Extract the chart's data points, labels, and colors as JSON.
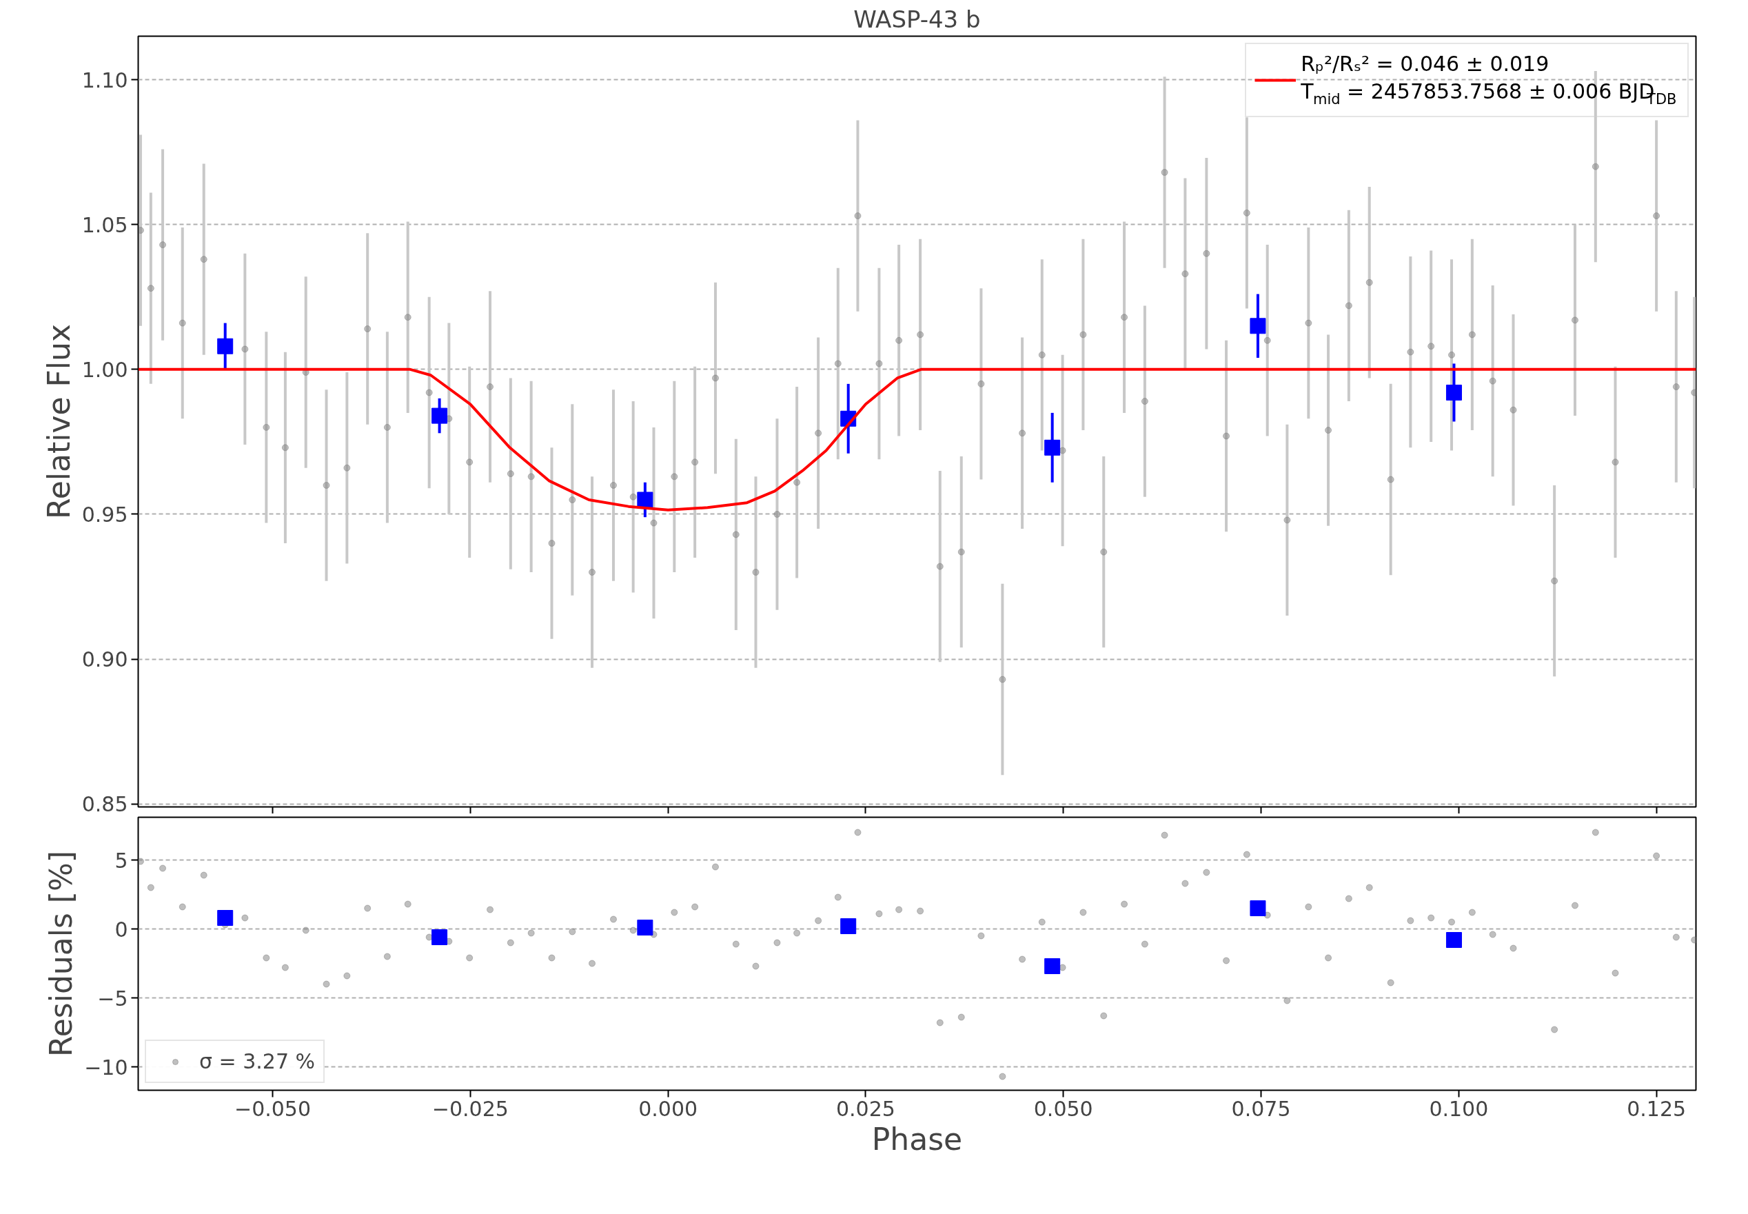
{
  "chart_data": [
    {
      "type": "scatter",
      "title": "WASP-43 b",
      "ylabel": "Relative Flux",
      "xlim": [
        -0.067,
        0.13
      ],
      "xticks": [
        {
          "value": -0.05,
          "label": null
        },
        {
          "value": -0.025,
          "label": null
        },
        {
          "value": 0,
          "label": null
        },
        {
          "value": 0.025,
          "label": null
        },
        {
          "value": 0.05,
          "label": null
        },
        {
          "value": 0.075,
          "label": null
        },
        {
          "value": 0.1,
          "label": null
        },
        {
          "value": 0.125,
          "label": null
        }
      ],
      "ylim": [
        0.849,
        1.115
      ],
      "yticks": [
        0.85,
        {
          "value": 0.9,
          "label": "0.90"
        },
        0.95,
        {
          "value": 1.0,
          "label": "1.00"
        },
        1.05,
        {
          "value": 1.1,
          "label": "1.10"
        }
      ],
      "tick_labels": "y",
      "grid": "y",
      "legend": "top right",
      "series": [
        {
          "marker": "circle",
          "color": "#808080",
          "x": [
            -0.0667,
            -0.0654,
            -0.0639,
            -0.0614,
            -0.0587,
            -0.056,
            -0.0535,
            -0.0508,
            -0.0484,
            -0.0458,
            -0.0432,
            -0.0406,
            -0.038,
            -0.0355,
            -0.0329,
            -0.0302,
            -0.0277,
            -0.0251,
            -0.0225,
            -0.0199,
            -0.0173,
            -0.0147,
            -0.0121,
            -0.0096,
            -0.0069,
            -0.0044,
            -0.0018,
            0.0008,
            0.0034,
            0.006,
            0.0086,
            0.0111,
            0.0138,
            0.0163,
            0.019,
            0.0215,
            0.024,
            0.0267,
            0.0292,
            0.0319,
            0.0344,
            0.0371,
            0.0396,
            0.0423,
            0.0448,
            0.0473,
            0.0499,
            0.0525,
            0.0551,
            0.0577,
            0.0603,
            0.0628,
            0.0654,
            0.0681,
            0.0706,
            0.0732,
            0.0758,
            0.0783,
            0.081,
            0.0835,
            0.0861,
            0.0887,
            0.0914,
            0.0939,
            0.0965,
            0.0991,
            0.1017,
            0.1043,
            0.1069,
            0.1121,
            0.1147,
            0.1173,
            0.1198,
            0.125,
            0.1275,
            0.1298
          ],
          "values": [
            1.048,
            1.028,
            1.043,
            1.016,
            1.038,
            null,
            1.007,
            0.98,
            0.973,
            0.999,
            0.96,
            0.966,
            1.014,
            0.98,
            1.018,
            0.992,
            0.983,
            0.968,
            0.994,
            0.964,
            0.963,
            0.94,
            0.955,
            0.93,
            0.96,
            0.956,
            0.947,
            0.963,
            0.968,
            0.997,
            0.943,
            0.93,
            0.95,
            0.961,
            0.978,
            1.002,
            1.053,
            1.002,
            1.01,
            1.012,
            0.932,
            0.937,
            0.995,
            0.893,
            0.978,
            1.005,
            0.972,
            1.012,
            0.937,
            1.018,
            0.989,
            1.068,
            1.033,
            1.04,
            0.977,
            1.054,
            1.01,
            0.948,
            1.016,
            0.979,
            1.022,
            1.03,
            0.962,
            1.006,
            1.008,
            1.005,
            1.012,
            0.996,
            0.986,
            0.927,
            1.017,
            1.07,
            0.968,
            1.053,
            0.994,
            0.992
          ],
          "errors": [
            0.033,
            0.033,
            0.033,
            0.033,
            0.033,
            null,
            0.033,
            0.033,
            0.033,
            0.033,
            0.033,
            0.033,
            0.033,
            0.033,
            0.033,
            0.033,
            0.033,
            0.033,
            0.033,
            0.033,
            0.033,
            0.033,
            0.033,
            0.033,
            0.033,
            0.033,
            0.033,
            0.033,
            0.033,
            0.033,
            0.033,
            0.033,
            0.033,
            0.033,
            0.033,
            0.033,
            0.033,
            0.033,
            0.033,
            0.033,
            0.033,
            0.033,
            0.033,
            0.033,
            0.033,
            0.033,
            0.033,
            0.033,
            0.033,
            0.033,
            0.033,
            0.033,
            0.033,
            0.033,
            0.033,
            0.033,
            0.033,
            0.033,
            0.033,
            0.033,
            0.033,
            0.033,
            0.033,
            0.033,
            0.033,
            0.033,
            0.033,
            0.033,
            0.033,
            0.033,
            0.033,
            0.033,
            0.033,
            0.033,
            0.033,
            0.033
          ]
        },
        {
          "marker": "square",
          "color": "#0000ff",
          "x": [
            -0.056,
            -0.0289,
            -0.0029,
            0.0228,
            0.0486,
            0.0746,
            0.0994
          ],
          "values": [
            1.008,
            0.984,
            0.955,
            0.983,
            0.973,
            1.015,
            0.992
          ],
          "errors": [
            0.008,
            0.006,
            0.006,
            0.012,
            0.012,
            0.011,
            0.01
          ]
        },
        {
          "type": "line",
          "name": "Rₚ²/Rₛ² = 0.046 ± 0.019\nT$_{mid}$ = 2457853.7568 ± 0.006 BJD$_{TDB}$",
          "color": "#ff0000",
          "x": [
            -0.067,
            -0.0326,
            -0.03,
            -0.025,
            -0.02,
            -0.015,
            -0.01,
            -0.005,
            0.0,
            0.005,
            0.01,
            0.0135,
            0.017,
            0.02,
            0.025,
            0.029,
            0.032,
            0.13
          ],
          "values": [
            1.0,
            1.0,
            0.998,
            0.988,
            0.973,
            0.9615,
            0.955,
            0.9527,
            0.9515,
            0.9523,
            0.954,
            0.958,
            0.965,
            0.972,
            0.988,
            0.997,
            1.0,
            1.0
          ]
        }
      ]
    },
    {
      "type": "scatter",
      "xlabel": "Phase",
      "ylabel": "Residuals [%]",
      "xlim": [
        -0.067,
        0.13
      ],
      "xticks": [
        {
          "value": -0.05,
          "label": "−0.050"
        },
        {
          "value": -0.025,
          "label": "−0.025"
        },
        {
          "value": 0,
          "label": "0.000"
        },
        {
          "value": 0.025,
          "label": "0.025"
        },
        {
          "value": 0.05,
          "label": "0.050"
        },
        {
          "value": 0.075,
          "label": "0.075"
        },
        {
          "value": 0.1,
          "label": "0.100"
        },
        {
          "value": 0.125,
          "label": "0.125"
        }
      ],
      "ylim": [
        -11.7,
        8.1
      ],
      "yticks": [
        {
          "value": -10,
          "label": "−10"
        },
        {
          "value": -5,
          "label": "−5"
        },
        0,
        5
      ],
      "grid": "y",
      "legend": "bottom left",
      "series": [
        {
          "marker": "circle",
          "name": "σ = 3.27 %",
          "color": "#808080",
          "x": [
            -0.0667,
            -0.0654,
            -0.0639,
            -0.0614,
            -0.0587,
            -0.056,
            -0.0535,
            -0.0508,
            -0.0484,
            -0.0458,
            -0.0432,
            -0.0406,
            -0.038,
            -0.0355,
            -0.0329,
            -0.0302,
            -0.0277,
            -0.0251,
            -0.0225,
            -0.0199,
            -0.0173,
            -0.0147,
            -0.0121,
            -0.0096,
            -0.0069,
            -0.0044,
            -0.0018,
            0.0008,
            0.0034,
            0.006,
            0.0086,
            0.0111,
            0.0138,
            0.0163,
            0.019,
            0.0215,
            0.024,
            0.0267,
            0.0292,
            0.0319,
            0.0344,
            0.0371,
            0.0396,
            0.0423,
            0.0448,
            0.0473,
            0.0499,
            0.0525,
            0.0551,
            0.0577,
            0.0603,
            0.0628,
            0.0654,
            0.0681,
            0.0706,
            0.0732,
            0.0758,
            0.0783,
            0.081,
            0.0835,
            0.0861,
            0.0887,
            0.0914,
            0.0939,
            0.0965,
            0.0991,
            0.1017,
            0.1043,
            0.1069,
            0.1121,
            0.1147,
            0.1173,
            0.1198,
            0.125,
            0.1275,
            0.1298
          ],
          "values": [
            4.9,
            3.0,
            4.4,
            1.6,
            3.9,
            0.3,
            0.8,
            -2.1,
            -2.8,
            -0.1,
            -4.0,
            -3.4,
            1.5,
            -2.0,
            1.8,
            -0.6,
            -0.9,
            -2.1,
            1.4,
            -1.0,
            -0.3,
            -2.1,
            -0.2,
            -2.5,
            0.7,
            -0.1,
            -0.4,
            1.2,
            1.6,
            4.5,
            -1.1,
            -2.7,
            -1.0,
            -0.3,
            0.6,
            2.3,
            7.0,
            1.1,
            1.4,
            1.3,
            -6.8,
            -6.4,
            -0.5,
            -10.7,
            -2.2,
            0.5,
            -2.8,
            1.2,
            -6.3,
            1.8,
            -1.1,
            6.8,
            3.3,
            4.1,
            -2.3,
            5.4,
            1.0,
            -5.2,
            1.6,
            -2.1,
            2.2,
            3.0,
            -3.9,
            0.6,
            0.8,
            0.5,
            1.2,
            -0.4,
            -1.4,
            -7.3,
            1.7,
            7.0,
            -3.2,
            5.3,
            -0.6,
            -0.8
          ]
        },
        {
          "marker": "square",
          "color": "#0000ff",
          "x": [
            -0.056,
            -0.0289,
            -0.0029,
            0.0228,
            0.0486,
            0.0746,
            0.0994
          ],
          "values": [
            0.8,
            -0.6,
            0.1,
            0.2,
            -2.7,
            1.5,
            -0.8
          ]
        }
      ]
    }
  ]
}
